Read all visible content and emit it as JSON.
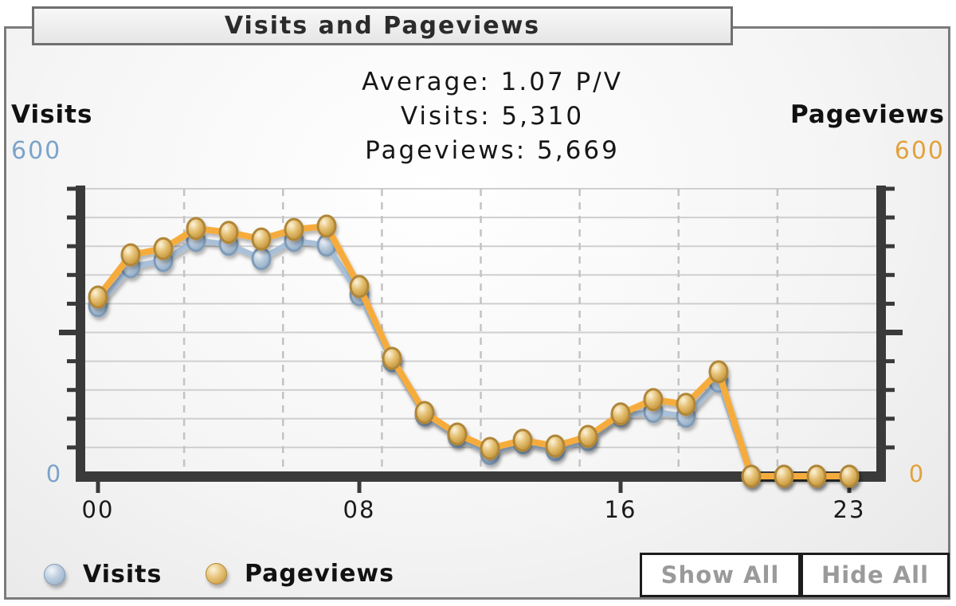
{
  "window": {
    "title": "Visits and Pageviews"
  },
  "summary": {
    "average_line": "Average: 1.07 P/V",
    "visits_line": "Visits: 5,310",
    "pageviews_line": "Pageviews: 5,669"
  },
  "axes": {
    "left_title": "Visits",
    "left_max": "600",
    "left_min": "0",
    "right_title": "Pageviews",
    "right_max": "600",
    "right_min": "0"
  },
  "legend": {
    "visits_label": "Visits",
    "pageviews_label": "Pageviews"
  },
  "buttons": {
    "show_all": "Show All",
    "hide_all": "Hide All"
  },
  "colors": {
    "axis": "#3a3a3a",
    "gridline": "#cfcfcf",
    "gridline_dashed": "#c3c3c3",
    "tick_label": "#1a1a1a",
    "visits_line": "#a9c0d8",
    "visits_rim": "#7f9cb9",
    "pageviews_line": "#f6ac3d",
    "pageviews_rim": "#b08637",
    "left_axis_number": "#7ba3c9",
    "right_axis_number": "#e2a23b"
  },
  "chart_data": {
    "type": "line",
    "x_hours": [
      0,
      1,
      2,
      3,
      4,
      5,
      6,
      7,
      8,
      9,
      10,
      11,
      12,
      13,
      14,
      15,
      16,
      17,
      18,
      19,
      20,
      21,
      22,
      23
    ],
    "x_ticks": [
      {
        "hour": 0,
        "label": "00"
      },
      {
        "hour": 8,
        "label": "08"
      },
      {
        "hour": 16,
        "label": "16"
      },
      {
        "hour": 23,
        "label": "23"
      }
    ],
    "ylim": [
      0,
      600
    ],
    "y_grid_step": 60,
    "x_dashed_divisions": 8,
    "legend_position": "bottom-left",
    "series": [
      {
        "name": "Visits",
        "values": [
          356,
          437,
          450,
          492,
          484,
          454,
          492,
          482,
          379,
          241,
          128,
          83,
          47,
          70,
          55,
          76,
          126,
          135,
          125,
          198,
          0,
          0,
          0,
          0
        ]
      },
      {
        "name": "Pageviews",
        "values": [
          374,
          462,
          475,
          517,
          509,
          495,
          515,
          522,
          396,
          246,
          133,
          88,
          58,
          75,
          63,
          83,
          130,
          160,
          150,
          218,
          0,
          0,
          0,
          0
        ]
      }
    ],
    "totals": {
      "visits": 5310,
      "pageviews": 5669,
      "average_pages_per_visit": 1.07
    }
  }
}
